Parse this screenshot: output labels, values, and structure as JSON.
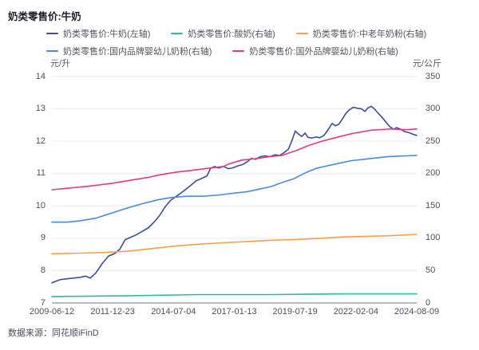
{
  "header": {
    "title": "奶类零售价:牛奶"
  },
  "footer": {
    "source": "数据来源：同花顺iFinD"
  },
  "chart_data": {
    "type": "line",
    "title": "奶类零售价:牛奶",
    "grid": true,
    "legend_position": "top",
    "x_ticks": [
      "2009-06-12",
      "2011-12-23",
      "2014-07-04",
      "2017-01-13",
      "2019-07-19",
      "2022-02-04",
      "2024-08-09"
    ],
    "left_axis": {
      "unit": "元/升",
      "min": 7,
      "max": 14,
      "ticks": [
        14,
        13,
        12,
        11,
        10,
        9,
        8,
        7
      ]
    },
    "right_axis": {
      "unit": "元/公斤",
      "min": 0,
      "max": 350,
      "ticks": [
        350,
        300,
        250,
        200,
        150,
        100,
        50,
        0
      ]
    },
    "series": [
      {
        "name": "奶类零售价:牛奶(左轴)",
        "axis": "left",
        "color": "#3D4E99",
        "points": [
          [
            0,
            7.62
          ],
          [
            0.022,
            7.72
          ],
          [
            0.05,
            7.76
          ],
          [
            0.077,
            7.79
          ],
          [
            0.092,
            7.83
          ],
          [
            0.105,
            7.77
          ],
          [
            0.12,
            7.92
          ],
          [
            0.138,
            8.22
          ],
          [
            0.155,
            8.45
          ],
          [
            0.171,
            8.52
          ],
          [
            0.186,
            8.66
          ],
          [
            0.201,
            8.96
          ],
          [
            0.214,
            9.02
          ],
          [
            0.23,
            9.1
          ],
          [
            0.247,
            9.21
          ],
          [
            0.265,
            9.33
          ],
          [
            0.28,
            9.5
          ],
          [
            0.295,
            9.7
          ],
          [
            0.311,
            9.98
          ],
          [
            0.326,
            10.18
          ],
          [
            0.344,
            10.32
          ],
          [
            0.361,
            10.46
          ],
          [
            0.379,
            10.62
          ],
          [
            0.396,
            10.78
          ],
          [
            0.411,
            10.85
          ],
          [
            0.425,
            10.93
          ],
          [
            0.435,
            11.16
          ],
          [
            0.446,
            11.22
          ],
          [
            0.457,
            11.17
          ],
          [
            0.47,
            11.22
          ],
          [
            0.484,
            11.15
          ],
          [
            0.497,
            11.18
          ],
          [
            0.51,
            11.24
          ],
          [
            0.523,
            11.28
          ],
          [
            0.536,
            11.37
          ],
          [
            0.547,
            11.47
          ],
          [
            0.558,
            11.44
          ],
          [
            0.571,
            11.52
          ],
          [
            0.584,
            11.55
          ],
          [
            0.597,
            11.52
          ],
          [
            0.611,
            11.58
          ],
          [
            0.624,
            11.56
          ],
          [
            0.637,
            11.65
          ],
          [
            0.648,
            11.75
          ],
          [
            0.659,
            12.05
          ],
          [
            0.667,
            12.32
          ],
          [
            0.676,
            12.22
          ],
          [
            0.685,
            12.15
          ],
          [
            0.694,
            12.25
          ],
          [
            0.702,
            12.12
          ],
          [
            0.713,
            12.1
          ],
          [
            0.724,
            12.13
          ],
          [
            0.735,
            12.11
          ],
          [
            0.746,
            12.18
          ],
          [
            0.757,
            12.35
          ],
          [
            0.768,
            12.55
          ],
          [
            0.777,
            12.48
          ],
          [
            0.786,
            12.52
          ],
          [
            0.794,
            12.65
          ],
          [
            0.805,
            12.85
          ],
          [
            0.816,
            12.98
          ],
          [
            0.827,
            13.05
          ],
          [
            0.838,
            13.02
          ],
          [
            0.849,
            13.0
          ],
          [
            0.858,
            12.92
          ],
          [
            0.866,
            13.03
          ],
          [
            0.875,
            13.08
          ],
          [
            0.884,
            13.0
          ],
          [
            0.893,
            12.88
          ],
          [
            0.904,
            12.75
          ],
          [
            0.915,
            12.6
          ],
          [
            0.926,
            12.45
          ],
          [
            0.937,
            12.37
          ],
          [
            0.945,
            12.42
          ],
          [
            0.956,
            12.37
          ],
          [
            0.967,
            12.3
          ],
          [
            0.98,
            12.26
          ],
          [
            0.991,
            12.21
          ],
          [
            1,
            12.18
          ]
        ]
      },
      {
        "name": "奶类零售价:酸奶(右轴)",
        "axis": "right",
        "color": "#2BBBA4",
        "points": [
          [
            0,
            10
          ],
          [
            0.2,
            11
          ],
          [
            0.4,
            13
          ],
          [
            0.6,
            13
          ],
          [
            0.8,
            14
          ],
          [
            1,
            14
          ]
        ]
      },
      {
        "name": "奶类零售价:中老年奶粉(右轴)",
        "axis": "right",
        "color": "#F6A142",
        "points": [
          [
            0,
            76
          ],
          [
            0.077,
            77
          ],
          [
            0.142,
            78
          ],
          [
            0.208,
            80
          ],
          [
            0.274,
            84
          ],
          [
            0.339,
            88
          ],
          [
            0.405,
            91
          ],
          [
            0.47,
            93
          ],
          [
            0.536,
            95
          ],
          [
            0.602,
            97
          ],
          [
            0.667,
            98
          ],
          [
            0.733,
            100
          ],
          [
            0.799,
            102
          ],
          [
            0.864,
            103
          ],
          [
            0.93,
            104
          ],
          [
            1,
            106
          ]
        ]
      },
      {
        "name": "奶类零售价:国内品牌婴幼儿奶粉(右轴)",
        "axis": "right",
        "color": "#4A8BD9",
        "points": [
          [
            0,
            125
          ],
          [
            0.044,
            125
          ],
          [
            0.077,
            127
          ],
          [
            0.12,
            131
          ],
          [
            0.164,
            139
          ],
          [
            0.208,
            147
          ],
          [
            0.252,
            154
          ],
          [
            0.295,
            160
          ],
          [
            0.328,
            163
          ],
          [
            0.372,
            165
          ],
          [
            0.416,
            165
          ],
          [
            0.46,
            167
          ],
          [
            0.503,
            170
          ],
          [
            0.536,
            172
          ],
          [
            0.569,
            176
          ],
          [
            0.602,
            180
          ],
          [
            0.635,
            187
          ],
          [
            0.663,
            192
          ],
          [
            0.694,
            201
          ],
          [
            0.724,
            208
          ],
          [
            0.755,
            212
          ],
          [
            0.788,
            216
          ],
          [
            0.821,
            220
          ],
          [
            0.853,
            222
          ],
          [
            0.886,
            224
          ],
          [
            0.919,
            226
          ],
          [
            0.952,
            227
          ],
          [
            1,
            228
          ]
        ]
      },
      {
        "name": "奶类零售价:国外品牌婴幼儿奶粉(右轴)",
        "axis": "right",
        "color": "#E2397F",
        "points": [
          [
            0,
            175
          ],
          [
            0.055,
            178
          ],
          [
            0.11,
            181
          ],
          [
            0.165,
            185
          ],
          [
            0.219,
            190
          ],
          [
            0.263,
            194
          ],
          [
            0.296,
            198
          ],
          [
            0.339,
            202
          ],
          [
            0.383,
            205
          ],
          [
            0.426,
            208
          ],
          [
            0.47,
            211
          ],
          [
            0.486,
            215
          ],
          [
            0.521,
            221
          ],
          [
            0.558,
            223
          ],
          [
            0.595,
            226
          ],
          [
            0.63,
            228
          ],
          [
            0.667,
            235
          ],
          [
            0.702,
            243
          ],
          [
            0.74,
            250
          ],
          [
            0.781,
            256
          ],
          [
            0.816,
            261
          ],
          [
            0.853,
            265
          ],
          [
            0.875,
            267
          ],
          [
            0.904,
            268
          ],
          [
            0.93,
            269
          ],
          [
            0.956,
            268
          ],
          [
            0.978,
            268
          ],
          [
            1,
            269
          ]
        ]
      }
    ],
    "style": {
      "grid_color": "#e9eaf2",
      "axis_color": "#9fa2ae"
    }
  }
}
